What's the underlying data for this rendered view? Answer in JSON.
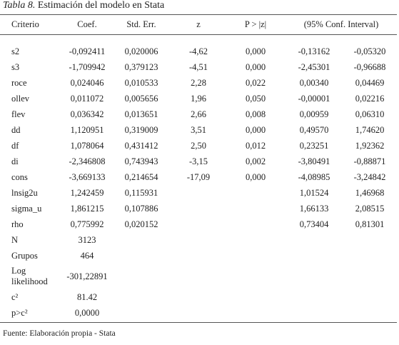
{
  "title": {
    "label": "Tabla 8.",
    "text": "Estimación del modelo en Stata"
  },
  "table": {
    "header": [
      "Criterio",
      "Coef.",
      "Std. Err.",
      "z",
      "P > |z|",
      "(95% Conf. Interval)"
    ],
    "rows": [
      [
        "s2",
        "-0,092411",
        "0,020006",
        "-4,62",
        "0,000",
        "-0,13162",
        "-0,05320"
      ],
      [
        "s3",
        "-1,709942",
        "0,379123",
        "-4,51",
        "0,000",
        "-2,45301",
        "-0,96688"
      ],
      [
        "roce",
        "0,024046",
        "0,010533",
        "2,28",
        "0,022",
        "0,00340",
        "0,04469"
      ],
      [
        "ollev",
        "0,011072",
        "0,005656",
        "1,96",
        "0,050",
        "-0,00001",
        "0,02216"
      ],
      [
        "flev",
        "0,036342",
        "0,013651",
        "2,66",
        "0,008",
        "0,00959",
        "0,06310"
      ],
      [
        "dd",
        "1,120951",
        "0,319009",
        "3,51",
        "0,000",
        "0,49570",
        "1,74620"
      ],
      [
        "df",
        "1,078064",
        "0,431412",
        "2,50",
        "0,012",
        "0,23251",
        "1,92362"
      ],
      [
        "di",
        "-2,346808",
        "0,743943",
        "-3,15",
        "0,002",
        "-3,80491",
        "-0,88871"
      ],
      [
        "cons",
        "-3,669133",
        "0,214654",
        "-17,09",
        "0,000",
        "-4,08985",
        "-3,24842"
      ],
      [
        "lnsig2u",
        "1,242459",
        "0,115931",
        null,
        null,
        "1,01524",
        "1,46968"
      ],
      [
        "sigma_u",
        "1,861215",
        "0,107886",
        null,
        null,
        "1,66133",
        "2,08515"
      ],
      [
        "rho",
        "0,775992",
        "0,020152",
        null,
        null,
        "0,73404",
        "0,81301"
      ],
      [
        "N",
        "3123",
        null,
        null,
        null,
        null,
        null
      ],
      [
        "Grupos",
        "464",
        null,
        null,
        null,
        null,
        null
      ],
      [
        "Log likelihood",
        "-301,22891",
        null,
        null,
        null,
        null,
        null
      ],
      [
        "c²",
        "81.42",
        null,
        null,
        null,
        null,
        null
      ],
      [
        "p>c²",
        "0,0000",
        null,
        null,
        null,
        null,
        null
      ]
    ]
  },
  "footer": "Fuente: Elaboración propia - Stata"
}
